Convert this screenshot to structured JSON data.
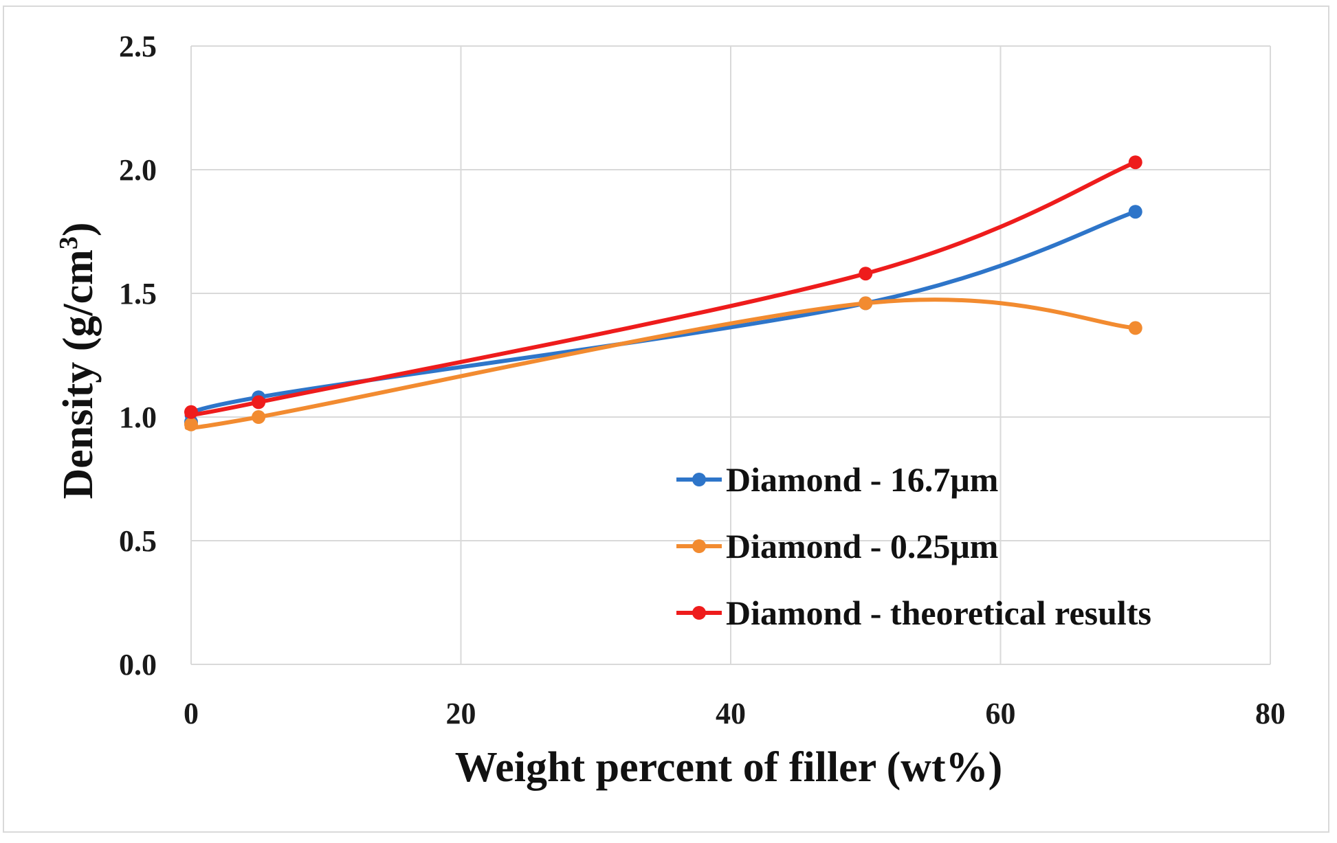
{
  "chart_data": {
    "type": "line",
    "title": "",
    "xlabel": "Weight percent of filler (wt%)",
    "ylabel": "Density (g/cm",
    "ylabel_sup": "3",
    "ylabel_close": ")",
    "xlim": [
      0,
      80
    ],
    "ylim": [
      0,
      2.5
    ],
    "x_ticks": [
      0,
      20,
      40,
      60,
      80
    ],
    "x_tick_labels": [
      "0",
      "20",
      "40",
      "60",
      "80"
    ],
    "y_ticks": [
      0,
      0.5,
      1.0,
      1.5,
      2.0,
      2.5
    ],
    "y_tick_labels": [
      "0.0",
      "0.5",
      "1.0",
      "1.5",
      "2.0",
      "2.5"
    ],
    "grid": true,
    "legend_position": "bottom-right",
    "series": [
      {
        "name": "Diamond - 16.7μm",
        "color": "#2e75c9",
        "x": [
          0,
          5,
          50,
          70
        ],
        "y": [
          0.98,
          1.08,
          1.46,
          1.83
        ]
      },
      {
        "name": "Diamond - 0.25μm",
        "color": "#f28b30",
        "x": [
          0,
          5,
          50,
          70
        ],
        "y": [
          0.97,
          1.0,
          1.46,
          1.36
        ]
      },
      {
        "name": "Diamond - theoretical results",
        "color": "#ee1c1c",
        "x": [
          0,
          5,
          50,
          70
        ],
        "y": [
          1.02,
          1.06,
          1.58,
          2.03
        ]
      }
    ]
  }
}
